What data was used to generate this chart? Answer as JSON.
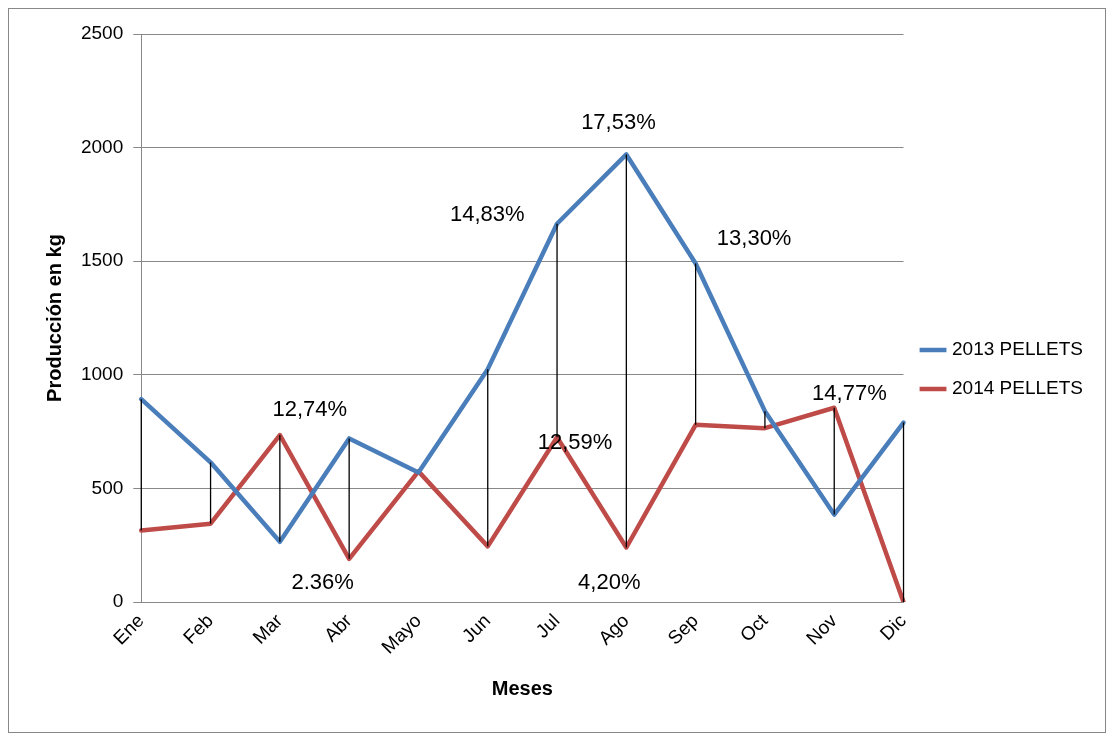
{
  "chart_data": {
    "type": "line",
    "xlabel": "Meses",
    "ylabel": "Producción en kg",
    "categories": [
      "Ene",
      "Feb",
      "Mar",
      "Abr",
      "Mayo",
      "Jun",
      "Jul",
      "Ago",
      "Sep",
      "Oct",
      "Nov",
      "Dic"
    ],
    "series": [
      {
        "name": "2013 PELLETS",
        "color": "#4a7ebb",
        "values": [
          893,
          615,
          265,
          720,
          570,
          1025,
          1665,
          1970,
          1490,
          840,
          385,
          790
        ],
        "errors": [
          [
            315,
            893
          ],
          [
            345,
            615
          ],
          [
            265,
            735
          ],
          [
            190,
            720
          ],
          null,
          [
            245,
            1025
          ],
          [
            725,
            1665
          ],
          [
            240,
            1970
          ],
          [
            780,
            1490
          ],
          [
            765,
            840
          ],
          [
            385,
            855
          ],
          [
            0,
            790
          ]
        ]
      },
      {
        "name": "2014 PELLETS",
        "color": "#be4b48",
        "values": [
          315,
          345,
          735,
          190,
          575,
          245,
          725,
          240,
          780,
          765,
          855,
          0
        ]
      }
    ],
    "ylim": [
      0,
      2500
    ],
    "yticks": [
      0,
      500,
      1000,
      1500,
      2000,
      2500
    ],
    "grid": "y",
    "legend": "right",
    "marker": "none",
    "line_style": "solid",
    "annotations": [
      "17,53%",
      "14,83%",
      "12,74%",
      "2.36%",
      "12,59%",
      "4,20%",
      "13,30%",
      "14,77%"
    ]
  }
}
